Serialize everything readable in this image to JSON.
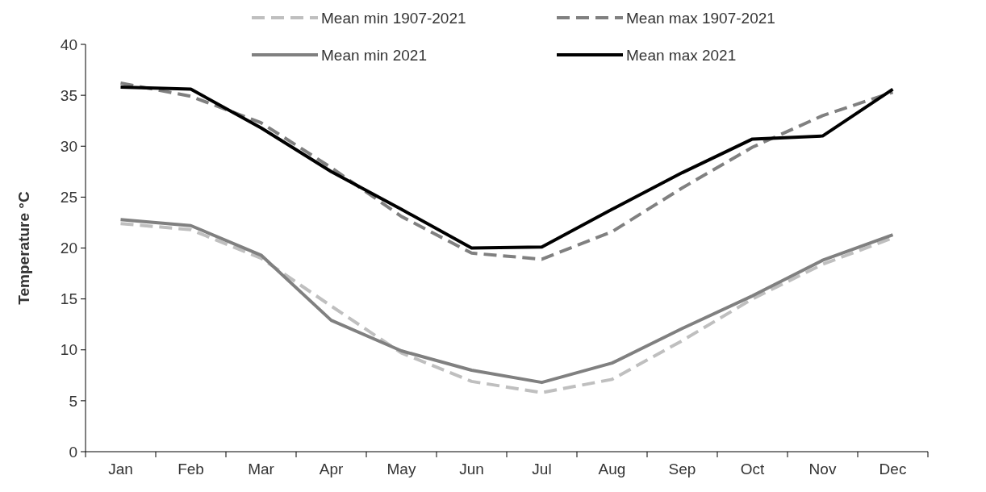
{
  "chart_data": {
    "type": "line",
    "ylabel": "Temperature °C",
    "categories": [
      "Jan",
      "Feb",
      "Mar",
      "Apr",
      "May",
      "Jun",
      "Jul",
      "Aug",
      "Sep",
      "Oct",
      "Nov",
      "Dec"
    ],
    "ylim": [
      0,
      40
    ],
    "yticks": [
      0,
      5,
      10,
      15,
      20,
      25,
      30,
      35,
      40
    ],
    "grid": false,
    "legend": "top",
    "series": [
      {
        "name": "Mean min 1907-2021",
        "color": "#bfbfbf",
        "line_style": "dashed",
        "values": [
          22.4,
          21.8,
          19.0,
          14.3,
          9.7,
          6.9,
          5.8,
          7.1,
          10.9,
          15.0,
          18.4,
          21.0
        ]
      },
      {
        "name": "Mean max 1907-2021",
        "color": "#808080",
        "line_style": "dashed",
        "values": [
          36.2,
          34.9,
          32.3,
          27.9,
          23.1,
          19.5,
          18.9,
          21.6,
          25.9,
          29.9,
          33.0,
          35.3
        ]
      },
      {
        "name": "Mean min 2021",
        "color": "#808080",
        "line_style": "solid",
        "values": [
          22.8,
          22.2,
          19.3,
          12.9,
          9.9,
          8.0,
          6.8,
          8.7,
          12.1,
          15.3,
          18.8,
          21.3
        ]
      },
      {
        "name": "Mean max 2021",
        "color": "#000000",
        "line_style": "solid",
        "values": [
          35.8,
          35.6,
          31.8,
          27.5,
          23.8,
          20.0,
          20.1,
          23.8,
          27.4,
          30.7,
          31.0,
          35.6
        ]
      }
    ]
  }
}
